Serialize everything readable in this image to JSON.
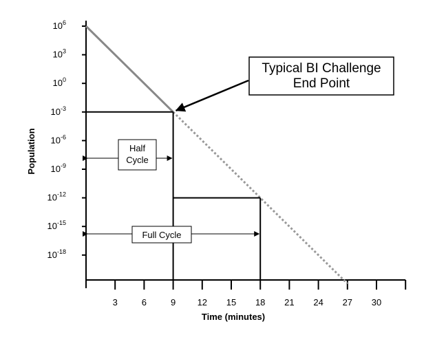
{
  "chart_data": {
    "type": "line",
    "xlabel": "Time (minutes)",
    "ylabel": "Population",
    "xlim": [
      0,
      33
    ],
    "x_ticks": [
      3,
      6,
      9,
      12,
      15,
      18,
      21,
      24,
      27,
      30
    ],
    "x_tick_labels": [
      "3",
      "6",
      "9",
      "12",
      "15",
      "18",
      "21",
      "24",
      "27",
      "30"
    ],
    "y_scale": "log",
    "y_ticks_exponents": [
      6,
      3,
      0,
      -3,
      -6,
      -9,
      -12,
      -15,
      -18
    ],
    "y_tick_labels": [
      {
        "base": "10",
        "exp": "6"
      },
      {
        "base": "10",
        "exp": "3"
      },
      {
        "base": "10",
        "exp": "0"
      },
      {
        "base": "10",
        "exp": "-3"
      },
      {
        "base": "10",
        "exp": "-6"
      },
      {
        "base": "10",
        "exp": "-9"
      },
      {
        "base": "10",
        "exp": "-12"
      },
      {
        "base": "10",
        "exp": "-15"
      },
      {
        "base": "10",
        "exp": "-18"
      }
    ],
    "series": [
      {
        "style": "solid",
        "color": "#888888",
        "x": [
          0,
          9
        ],
        "y_exp": [
          6,
          -3
        ]
      },
      {
        "style": "dotted",
        "color": "#999999",
        "x": [
          9,
          27
        ],
        "y_exp": [
          -3,
          -21
        ]
      }
    ],
    "markers": [
      {
        "from_x": 0,
        "to_x": 9,
        "y_exp": -3
      },
      {
        "from_x": 9,
        "to_x": 18,
        "y_exp": -12
      }
    ],
    "annotations": {
      "end_point": {
        "lines": [
          "Typical BI Challenge",
          "End Point"
        ],
        "target_x": 9,
        "target_y_exp": -3
      },
      "half_cycle": {
        "lines": [
          "Half",
          "Cycle"
        ],
        "from_x": 0,
        "to_x": 9
      },
      "full_cycle": {
        "lines": [
          "Full Cycle"
        ],
        "from_x": 0,
        "to_x": 18
      }
    },
    "colors": {
      "axis": "#000000",
      "curve_solid": "#888888",
      "curve_dotted": "#999999"
    }
  }
}
